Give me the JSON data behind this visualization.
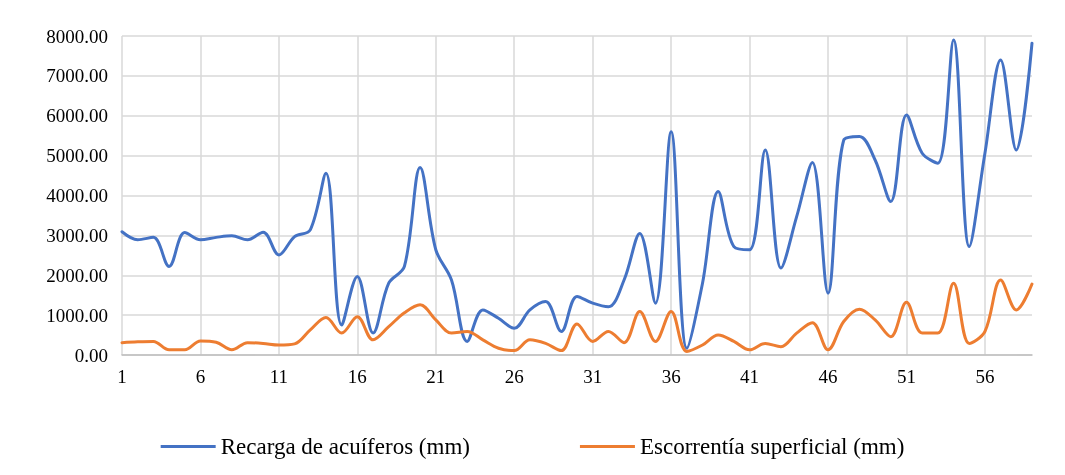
{
  "chart_data": {
    "type": "line",
    "x": [
      1,
      2,
      3,
      4,
      5,
      6,
      7,
      8,
      9,
      10,
      11,
      12,
      13,
      14,
      15,
      16,
      17,
      18,
      19,
      20,
      21,
      22,
      23,
      24,
      25,
      26,
      27,
      28,
      29,
      30,
      31,
      32,
      33,
      34,
      35,
      36,
      37,
      38,
      39,
      40,
      41,
      42,
      43,
      44,
      45,
      46,
      47,
      48,
      49,
      50,
      51,
      52,
      53,
      54,
      55,
      56,
      57,
      58,
      59
    ],
    "xlim": [
      1,
      59
    ],
    "xticks": [
      1,
      6,
      11,
      16,
      21,
      26,
      31,
      36,
      41,
      46,
      51,
      56
    ],
    "series": [
      {
        "name": "Recarga de acuíferos (mm)",
        "color": "#4472c4",
        "values": [
          3090,
          2890,
          2950,
          2220,
          3070,
          2890,
          2950,
          2990,
          2890,
          3080,
          2510,
          2970,
          3140,
          4560,
          750,
          1970,
          550,
          1800,
          2220,
          4700,
          2640,
          1880,
          340,
          1130,
          920,
          670,
          1130,
          1340,
          590,
          1470,
          1300,
          1210,
          1880,
          3050,
          1300,
          5600,
          170,
          1800,
          4100,
          2720,
          2640,
          5140,
          2180,
          3470,
          4830,
          1550,
          5390,
          5480,
          4890,
          3850,
          6020,
          5060,
          4810,
          7900,
          2720,
          5060,
          7400,
          5140,
          7820
        ]
      },
      {
        "name": "Escorrentía superficial (mm)",
        "color": "#ed7d31",
        "values": [
          310,
          330,
          340,
          130,
          130,
          350,
          320,
          130,
          310,
          290,
          250,
          280,
          630,
          940,
          550,
          960,
          380,
          710,
          1060,
          1260,
          880,
          550,
          590,
          380,
          170,
          110,
          380,
          290,
          110,
          780,
          340,
          590,
          310,
          1090,
          340,
          1090,
          90,
          250,
          500,
          340,
          130,
          290,
          210,
          550,
          810,
          130,
          840,
          1150,
          880,
          460,
          1320,
          550,
          550,
          1800,
          290,
          590,
          1880,
          1130,
          1780
        ]
      }
    ],
    "ylim": [
      0,
      8000
    ],
    "yticks": [
      {
        "value": 0,
        "label": "0.00"
      },
      {
        "value": 1000,
        "label": "1000.00"
      },
      {
        "value": 2000,
        "label": "2000.00"
      },
      {
        "value": 3000,
        "label": "3000.00"
      },
      {
        "value": 4000,
        "label": "4000.00"
      },
      {
        "value": 5000,
        "label": "5000.00"
      },
      {
        "value": 6000,
        "label": "6000.00"
      },
      {
        "value": 7000,
        "label": "7000.00"
      },
      {
        "value": 8000,
        "label": "8000.00"
      }
    ],
    "grid": true,
    "legend": "bottom",
    "marker": "none",
    "line_style": "solid"
  }
}
